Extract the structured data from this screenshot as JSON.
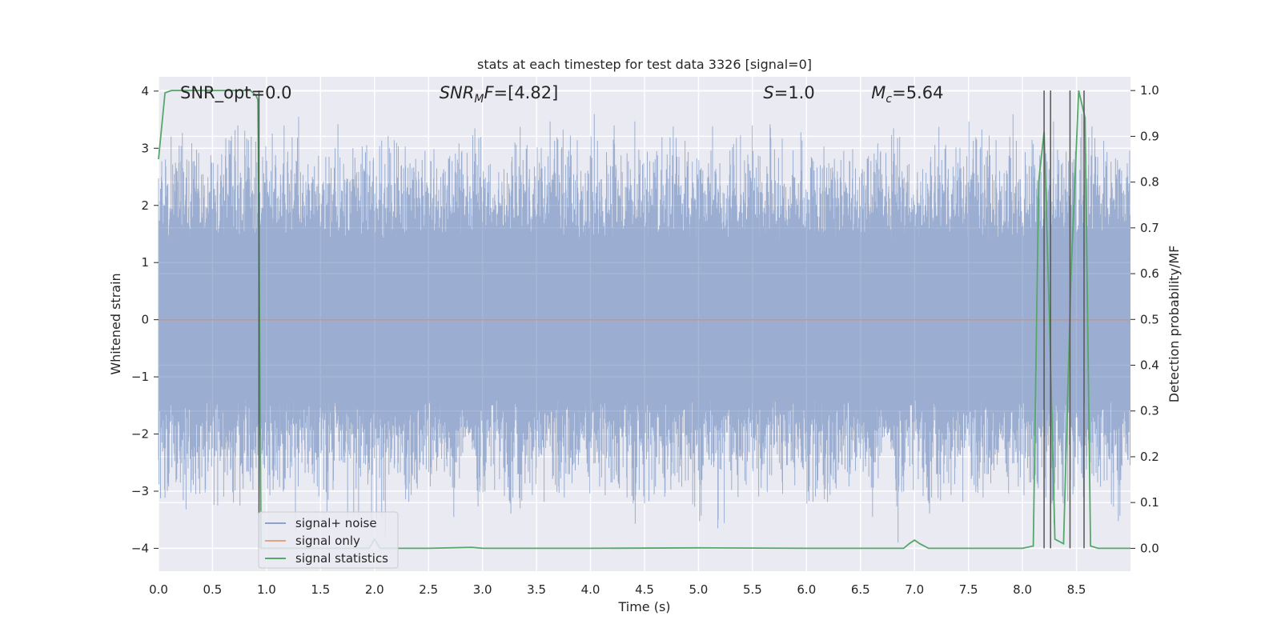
{
  "chart_data": {
    "type": "line",
    "title": "stats at each timestep for test data 3326 [signal=0]",
    "xlabel": "Time (s)",
    "ylabel": "Whitened strain",
    "ylabel_right": "Detection probability/MF",
    "xlim": [
      0,
      9.0
    ],
    "ylim_left": [
      -4.4,
      4.25
    ],
    "ylim_right": [
      -0.05,
      1.03
    ],
    "x_ticks": [
      "0.0",
      "0.5",
      "1.0",
      "1.5",
      "2.0",
      "2.5",
      "3.0",
      "3.5",
      "4.0",
      "4.5",
      "5.0",
      "5.5",
      "6.0",
      "6.5",
      "7.0",
      "7.5",
      "8.0",
      "8.5"
    ],
    "y_ticks_left": [
      "4",
      "3",
      "2",
      "1",
      "0",
      "−1",
      "−2",
      "−3",
      "−4"
    ],
    "y_ticks_right": [
      "1.0",
      "0.9",
      "0.8",
      "0.7",
      "0.6",
      "0.5",
      "0.4",
      "0.3",
      "0.2",
      "0.1",
      "0.0"
    ],
    "grid": true,
    "legend_position": "lower-left",
    "annotations": {
      "snr_opt": "SNR_opt=0.0",
      "snr_mf_var": "SNR",
      "snr_mf_sub": "M",
      "snr_mf_var2": "F",
      "snr_mf_value": "=[4.82]",
      "s_var": "S",
      "s_value": "=1.0",
      "mc_var": "M",
      "mc_sub": "c",
      "mc_value": "=5.64"
    },
    "noise_envelope": {
      "typical_range": [
        -2.0,
        2.0
      ],
      "max_spikes": [
        [
          1.3,
          3.55
        ],
        [
          4.22,
          3.4
        ],
        [
          5.5,
          3.4
        ],
        [
          8.55,
          3.6
        ],
        [
          3.3,
          3.1
        ]
      ],
      "min_spikes": [
        [
          2.1,
          -3.8
        ],
        [
          5.18,
          -3.65
        ],
        [
          6.85,
          -3.9
        ],
        [
          3.35,
          -3.3
        ],
        [
          0.55,
          -3.25
        ]
      ]
    },
    "series": [
      {
        "name": "signal+ noise",
        "color": "#4c72b0",
        "axis": "left"
      },
      {
        "name": "signal only",
        "color": "#dd8452",
        "axis": "left",
        "x": [
          0,
          9.0
        ],
        "y": [
          0,
          0
        ]
      },
      {
        "name": "signal statistics",
        "color": "#55a868",
        "axis": "right",
        "x": [
          0,
          0.06,
          0.12,
          0.3,
          0.5,
          0.7,
          0.85,
          0.9,
          0.92,
          0.93,
          0.95,
          1.0,
          1.5,
          1.95,
          2.0,
          2.05,
          2.5,
          2.9,
          3.0,
          4.0,
          5.0,
          6.0,
          6.9,
          6.95,
          7.0,
          7.05,
          7.13,
          7.5,
          8.0,
          8.1,
          8.15,
          8.2,
          8.25,
          8.3,
          8.38,
          8.45,
          8.52,
          8.58,
          8.63,
          8.7,
          9.0
        ],
        "y": [
          0.85,
          0.995,
          1.0,
          1.0,
          1.0,
          1.0,
          1.0,
          0.99,
          0.98,
          0.7,
          0.0,
          0.0,
          0.0,
          0.0,
          0.02,
          0.0,
          0.0,
          0.002,
          0.0,
          0.0,
          0.001,
          0.0,
          0.0,
          0.01,
          0.018,
          0.01,
          0.0,
          0.0,
          0.0,
          0.005,
          0.8,
          0.91,
          0.5,
          0.02,
          0.01,
          0.6,
          1.0,
          0.94,
          0.005,
          0.0,
          0.0
        ]
      }
    ],
    "vertical_markers": {
      "color": "#555555",
      "x": [
        0.93,
        8.2,
        8.26,
        8.44,
        8.57
      ],
      "y_range_right": [
        0.0,
        1.0
      ]
    }
  }
}
